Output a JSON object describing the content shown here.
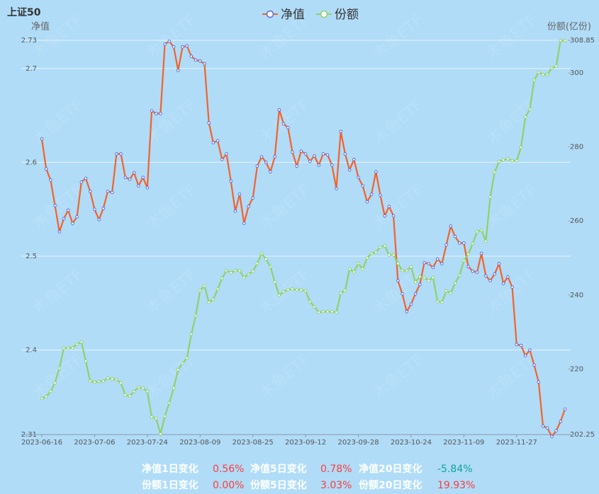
{
  "chart_data": {
    "type": "line",
    "title": "上证50",
    "y_label": "净值",
    "y2_label": "份额(亿份)",
    "watermark": "木鱼ETF",
    "categories": [
      "2023-06-16",
      null,
      null,
      null,
      null,
      null,
      null,
      null,
      null,
      null,
      null,
      null,
      "2023-07-06",
      null,
      null,
      null,
      null,
      null,
      null,
      null,
      null,
      null,
      null,
      null,
      "2023-07-24",
      null,
      null,
      null,
      null,
      null,
      null,
      null,
      null,
      null,
      null,
      null,
      "2023-08-09",
      null,
      null,
      null,
      null,
      null,
      null,
      null,
      null,
      null,
      null,
      null,
      "2023-08-25",
      null,
      null,
      null,
      null,
      null,
      null,
      null,
      null,
      null,
      null,
      null,
      "2023-09-12",
      null,
      null,
      null,
      null,
      null,
      null,
      null,
      null,
      null,
      null,
      null,
      "2023-09-28",
      null,
      null,
      null,
      null,
      null,
      null,
      null,
      null,
      null,
      null,
      null,
      "2023-10-24",
      null,
      null,
      null,
      null,
      null,
      null,
      null,
      null,
      null,
      null,
      null,
      "2023-11-09",
      null,
      null,
      null,
      null,
      null,
      null,
      null,
      null,
      null,
      null,
      null,
      "2023-11-27",
      null,
      null,
      null,
      null,
      null,
      null,
      null,
      null,
      null,
      null,
      null
    ],
    "series": [
      {
        "name": "净值",
        "color": "#f4622a",
        "marker": "#5b6bd6",
        "axis": "y",
        "values": [
          2.625,
          2.593,
          2.581,
          2.554,
          2.526,
          2.54,
          2.549,
          2.535,
          2.542,
          2.579,
          2.583,
          2.569,
          2.55,
          2.539,
          2.551,
          2.569,
          2.568,
          2.609,
          2.609,
          2.584,
          2.582,
          2.589,
          2.575,
          2.584,
          2.573,
          2.655,
          2.652,
          2.652,
          2.726,
          2.729,
          2.723,
          2.698,
          2.723,
          2.724,
          2.713,
          2.709,
          2.708,
          2.705,
          2.642,
          2.621,
          2.623,
          2.603,
          2.609,
          2.58,
          2.548,
          2.566,
          2.535,
          2.553,
          2.562,
          2.596,
          2.606,
          2.6,
          2.59,
          2.606,
          2.656,
          2.641,
          2.637,
          2.611,
          2.596,
          2.612,
          2.609,
          2.601,
          2.607,
          2.597,
          2.609,
          2.608,
          2.597,
          2.572,
          2.633,
          2.609,
          2.592,
          2.603,
          2.584,
          2.575,
          2.558,
          2.566,
          2.59,
          2.565,
          2.543,
          2.553,
          2.543,
          2.474,
          2.46,
          2.441,
          2.449,
          2.46,
          2.47,
          2.493,
          2.492,
          2.488,
          2.497,
          2.492,
          2.512,
          2.532,
          2.521,
          2.514,
          2.514,
          2.489,
          2.484,
          2.483,
          2.503,
          2.479,
          2.474,
          2.481,
          2.492,
          2.471,
          2.478,
          2.467,
          2.406,
          2.405,
          2.394,
          2.4,
          2.384,
          2.366,
          2.319,
          2.317,
          2.308,
          2.314,
          2.324,
          2.337
        ]
      },
      {
        "name": "份额",
        "color": "#8fd16a",
        "marker": "#8fd16a",
        "axis": "y2",
        "values": [
          212.0,
          212.5,
          213.9,
          216.2,
          220.2,
          225.6,
          225.6,
          225.7,
          226.7,
          227.3,
          222.1,
          216.7,
          216.4,
          216.6,
          216.7,
          217.5,
          217.3,
          217.1,
          216.2,
          212.9,
          212.7,
          213.9,
          215.0,
          214.8,
          213.9,
          207.0,
          206.6,
          202.4,
          207.2,
          210.8,
          214.8,
          219.8,
          221.5,
          222.9,
          229.4,
          234.4,
          241.2,
          242.4,
          238.0,
          238.8,
          241.6,
          244.5,
          246.6,
          246.0,
          246.6,
          246.6,
          244.7,
          245.6,
          246.4,
          248.5,
          251.2,
          249.7,
          247.6,
          243.5,
          239.9,
          240.9,
          241.4,
          241.6,
          241.4,
          241.4,
          241.1,
          238.2,
          236.8,
          235.3,
          235.5,
          235.5,
          235.5,
          235.3,
          240.5,
          241.2,
          247.0,
          246.2,
          248.5,
          247.0,
          250.0,
          251.2,
          251.6,
          252.9,
          253.3,
          250.8,
          250.8,
          248.5,
          246.6,
          246.6,
          247.6,
          243.5,
          244.9,
          244.7,
          243.9,
          244.7,
          238.2,
          238.0,
          241.1,
          240.5,
          243.2,
          245.3,
          249.3,
          251.0,
          253.9,
          257.1,
          257.5,
          254.5,
          266.5,
          273.2,
          276.1,
          276.5,
          276.8,
          276.3,
          276.3,
          279.9,
          288.1,
          290.2,
          298.1,
          300.2,
          299.6,
          299.6,
          301.3,
          301.9,
          308.8,
          308.8
        ]
      }
    ],
    "ylim": [
      2.31,
      2.73
    ],
    "yticks": [
      2.31,
      2.4,
      2.5,
      2.6,
      2.7,
      2.73
    ],
    "y2lim": [
      202.25,
      308.85
    ],
    "y2ticks": [
      202.25,
      220,
      240,
      260,
      280,
      300,
      308.85
    ],
    "grid": true,
    "legend": "top"
  },
  "stats": [
    [
      {
        "label": "净值1日变化",
        "value": "0.56%",
        "color": "#ff3b3b"
      },
      {
        "label": "净值5日变化",
        "value": "0.78%",
        "color": "#ff3b3b"
      },
      {
        "label": "净值20日变化",
        "value": "-5.84%",
        "color": "#11a39b"
      }
    ],
    [
      {
        "label": "份额1日变化",
        "value": "0.00%",
        "color": "#ff3b3b"
      },
      {
        "label": "份额5日变化",
        "value": "3.03%",
        "color": "#ff3b3b"
      },
      {
        "label": "份额20日变化",
        "value": "19.93%",
        "color": "#ff3b3b"
      }
    ]
  ]
}
